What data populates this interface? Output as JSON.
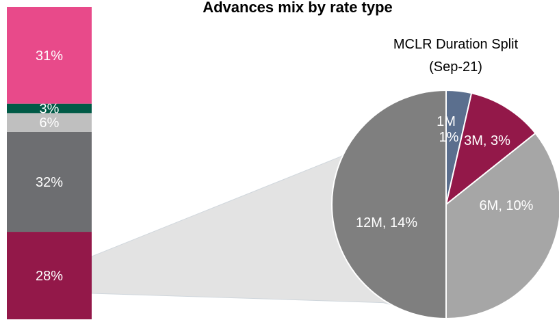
{
  "chart_data": [
    {
      "type": "bar",
      "title": "Advances mix by rate type",
      "stacked": true,
      "segments": [
        {
          "value": 28,
          "label": "28%",
          "color": "#931849"
        },
        {
          "value": 32,
          "label": "32%",
          "color": "#6d6e71"
        },
        {
          "value": 6,
          "label": "6%",
          "color": "#bfbfbf"
        },
        {
          "value": 3,
          "label": "3%",
          "color": "#005a46"
        },
        {
          "value": 31,
          "label": "31%",
          "color": "#e84a8a"
        }
      ]
    },
    {
      "type": "pie",
      "title": "MCLR Duration Split",
      "subtitle": "(Sep-21)",
      "slices": [
        {
          "name": "1M",
          "value": 1,
          "label": "1M 1%",
          "color": "#5b6f8e"
        },
        {
          "name": "3M",
          "value": 3,
          "label": "3M, 3%",
          "color": "#931849"
        },
        {
          "name": "6M",
          "value": 10,
          "label": "6M, 10%",
          "color": "#a6a6a6"
        },
        {
          "name": "12M",
          "value": 14,
          "label": "12M, 14%",
          "color": "#7f7f7f"
        }
      ],
      "total": 28
    }
  ]
}
